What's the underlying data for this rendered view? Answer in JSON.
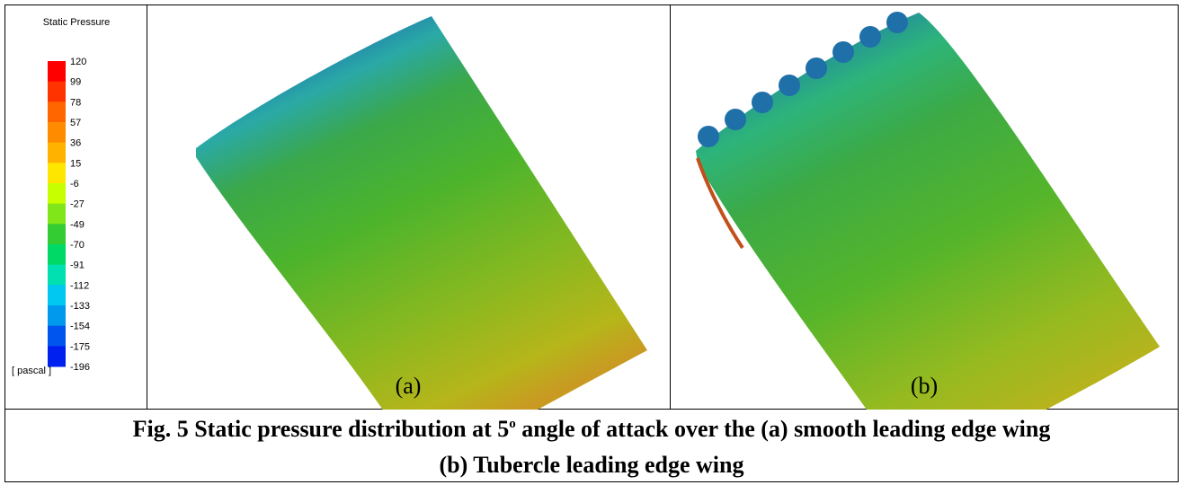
{
  "legend": {
    "title": "Static Pressure",
    "ticks": [
      120,
      99,
      78,
      57,
      36,
      15,
      -6,
      -27,
      -49,
      -70,
      -91,
      -112,
      -133,
      -154,
      -175,
      -196
    ],
    "unit": "[ pascal ]"
  },
  "panels": [
    {
      "label": "(a)"
    },
    {
      "label": "(b)"
    }
  ],
  "caption": {
    "line1_start": "Fig. 5 Static pressure distribution at 5",
    "superscript": "o",
    "line1_end": " angle of attack over the (a) smooth leading edge wing",
    "line2": "(b) Tubercle leading edge wing"
  }
}
